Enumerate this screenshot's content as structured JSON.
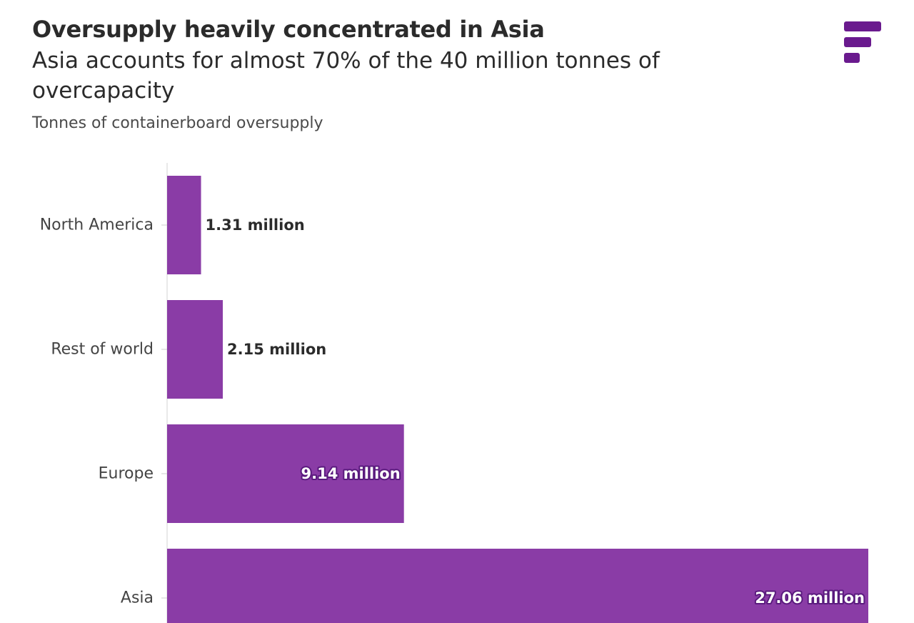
{
  "header": {
    "title": "Oversupply heavily concentrated in Asia",
    "subtitle": "Asia accounts for almost 70% of the 40 million tonnes of overcapacity",
    "caption": "Tonnes of containerboard oversupply"
  },
  "logo": {
    "icon": "brand-logo-icon",
    "color": "#6a1a8e"
  },
  "chart_data": {
    "type": "bar",
    "orientation": "horizontal",
    "title": "Oversupply heavily concentrated in Asia",
    "subtitle": "Asia accounts for almost 70% of the 40 million tonnes of overcapacity",
    "ylabel": "",
    "xlabel": "",
    "categories": [
      "North America",
      "Rest of world",
      "Europe",
      "Asia"
    ],
    "values": [
      1.31,
      2.15,
      9.14,
      27.06
    ],
    "value_labels": [
      "1.31 million",
      "2.15 million",
      "9.14 million",
      "27.06 million"
    ],
    "unit": "million tonnes",
    "xlim": [
      0,
      27.06
    ],
    "grid": false,
    "bar_color": "#8a3ca6"
  }
}
